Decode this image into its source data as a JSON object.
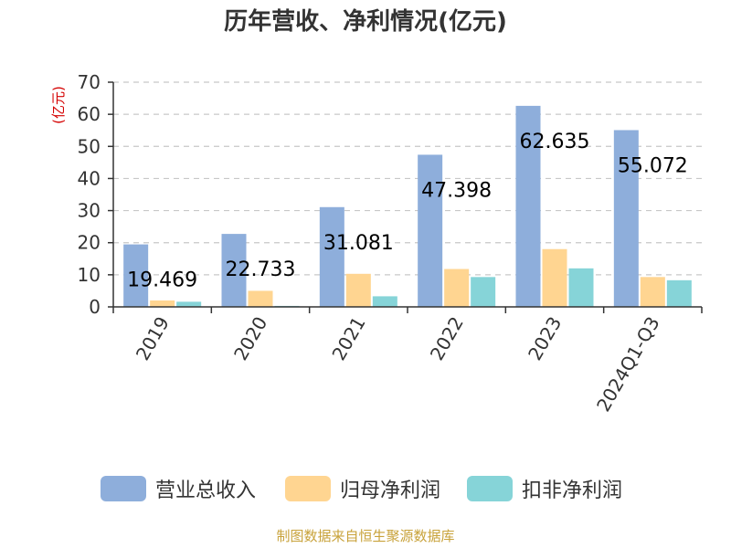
{
  "title": "历年营收、净利情况(亿元)",
  "unit_label": "(亿元)",
  "source": "制图数据来自恒生聚源数据库",
  "colors": {
    "revenue": "#8eaedb",
    "net_profit": "#ffd591",
    "deducted_net_profit": "#86d4d8",
    "grid": "#c8c8c8",
    "axis": "#333333",
    "unit": "#d40000",
    "source": "#c8a23a"
  },
  "chart_data": {
    "type": "bar",
    "categories": [
      "2019",
      "2020",
      "2021",
      "2022",
      "2023",
      "2024Q1-Q3"
    ],
    "series": [
      {
        "name": "营业总收入",
        "values": [
          19.469,
          22.733,
          31.081,
          47.398,
          62.635,
          55.072
        ]
      },
      {
        "name": "归母净利润",
        "values": [
          2.0,
          5.0,
          10.3,
          11.8,
          18.0,
          9.3
        ]
      },
      {
        "name": "扣非净利润",
        "values": [
          1.6,
          0.3,
          3.3,
          9.3,
          12.0,
          8.3
        ]
      }
    ],
    "data_labels": [
      "19.469",
      "22.733",
      "31.081",
      "47.398",
      "62.635",
      "55.072"
    ],
    "yticks": [
      "0",
      "10",
      "20",
      "30",
      "40",
      "50",
      "60",
      "70"
    ],
    "ylim": [
      0,
      70
    ],
    "grid": true,
    "legend_position": "bottom"
  }
}
